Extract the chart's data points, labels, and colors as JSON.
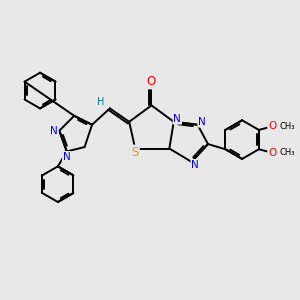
{
  "bg_color": "#e8e8e8",
  "bond_color": "#000000",
  "bond_width": 1.4,
  "atom_colors": {
    "N": "#0000ff",
    "O": "#ff0000",
    "S": "#ccaa00",
    "H": "#008080",
    "C": "#000000"
  },
  "font_size": 7.5,
  "fig_width": 3.0,
  "fig_height": 3.0,
  "xlim": [
    0,
    10.0
  ],
  "ylim": [
    1.5,
    8.5
  ]
}
